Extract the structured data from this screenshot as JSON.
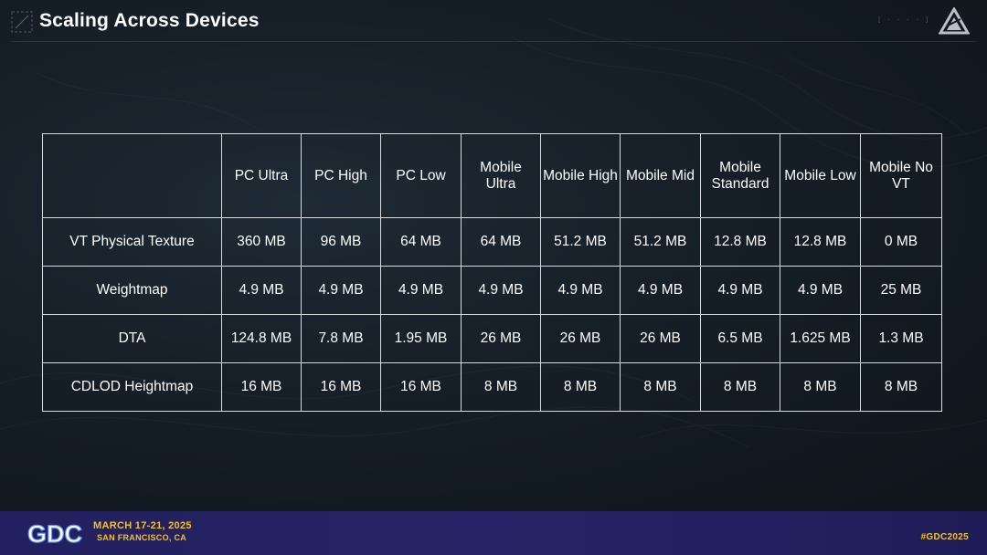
{
  "slide": {
    "title": "Scaling Across Devices"
  },
  "table": {
    "headers": [
      "",
      "PC Ultra",
      "PC High",
      "PC Low",
      "Mobile Ultra",
      "Mobile High",
      "Mobile Mid",
      "Mobile Standard",
      "Mobile Low",
      "Mobile No VT"
    ],
    "rows": [
      {
        "label": "VT Physical Texture",
        "values": [
          "360 MB",
          "96 MB",
          "64 MB",
          "64 MB",
          "51.2 MB",
          "51.2 MB",
          "12.8 MB",
          "12.8 MB",
          "0 MB"
        ]
      },
      {
        "label": "Weightmap",
        "values": [
          "4.9 MB",
          "4.9 MB",
          "4.9 MB",
          "4.9 MB",
          "4.9 MB",
          "4.9 MB",
          "4.9 MB",
          "4.9 MB",
          "25 MB"
        ]
      },
      {
        "label": "DTA",
        "values": [
          "124.8 MB",
          "7.8 MB",
          "1.95 MB",
          "26 MB",
          "26 MB",
          "26 MB",
          "6.5 MB",
          "1.625 MB",
          "1.3 MB"
        ]
      },
      {
        "label": "CDLOD Heightmap",
        "values": [
          "16 MB",
          "16 MB",
          "16 MB",
          "8 MB",
          "8 MB",
          "8 MB",
          "8 MB",
          "8 MB",
          "8 MB"
        ]
      }
    ]
  },
  "footer": {
    "logo_text": "GDC",
    "date": "MARCH 17-21, 2025",
    "location": "SAN FRANCISCO, CA",
    "hashtag": "#GDC2025"
  },
  "icons": {
    "title_mark": "crosshair-square-icon",
    "brand": "triangle-logo-icon"
  },
  "colors": {
    "background": "#141c24",
    "footer_band": "#24225f",
    "accent_yellow": "#f6c323",
    "table_border": "#d6dbe0"
  }
}
